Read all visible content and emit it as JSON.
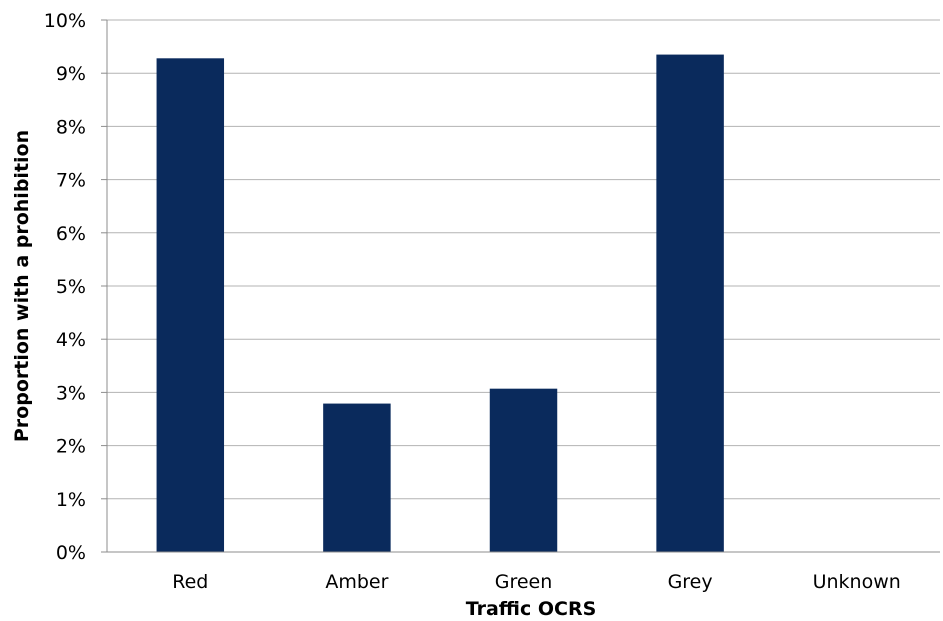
{
  "chart_data": {
    "type": "bar",
    "title": "",
    "xlabel": "Traffic OCRS",
    "ylabel": "Proportion with a prohibition",
    "categories": [
      "Red",
      "Amber",
      "Green",
      "Grey",
      "Unknown"
    ],
    "values": [
      9.28,
      2.79,
      3.07,
      9.35,
      0
    ],
    "ylim": [
      0,
      10
    ],
    "yticks": [
      "0%",
      "1%",
      "2%",
      "3%",
      "4%",
      "5%",
      "6%",
      "7%",
      "8%",
      "9%",
      "10%"
    ],
    "grid": true,
    "legend": "none",
    "bar_color": "#0a2a5c"
  }
}
